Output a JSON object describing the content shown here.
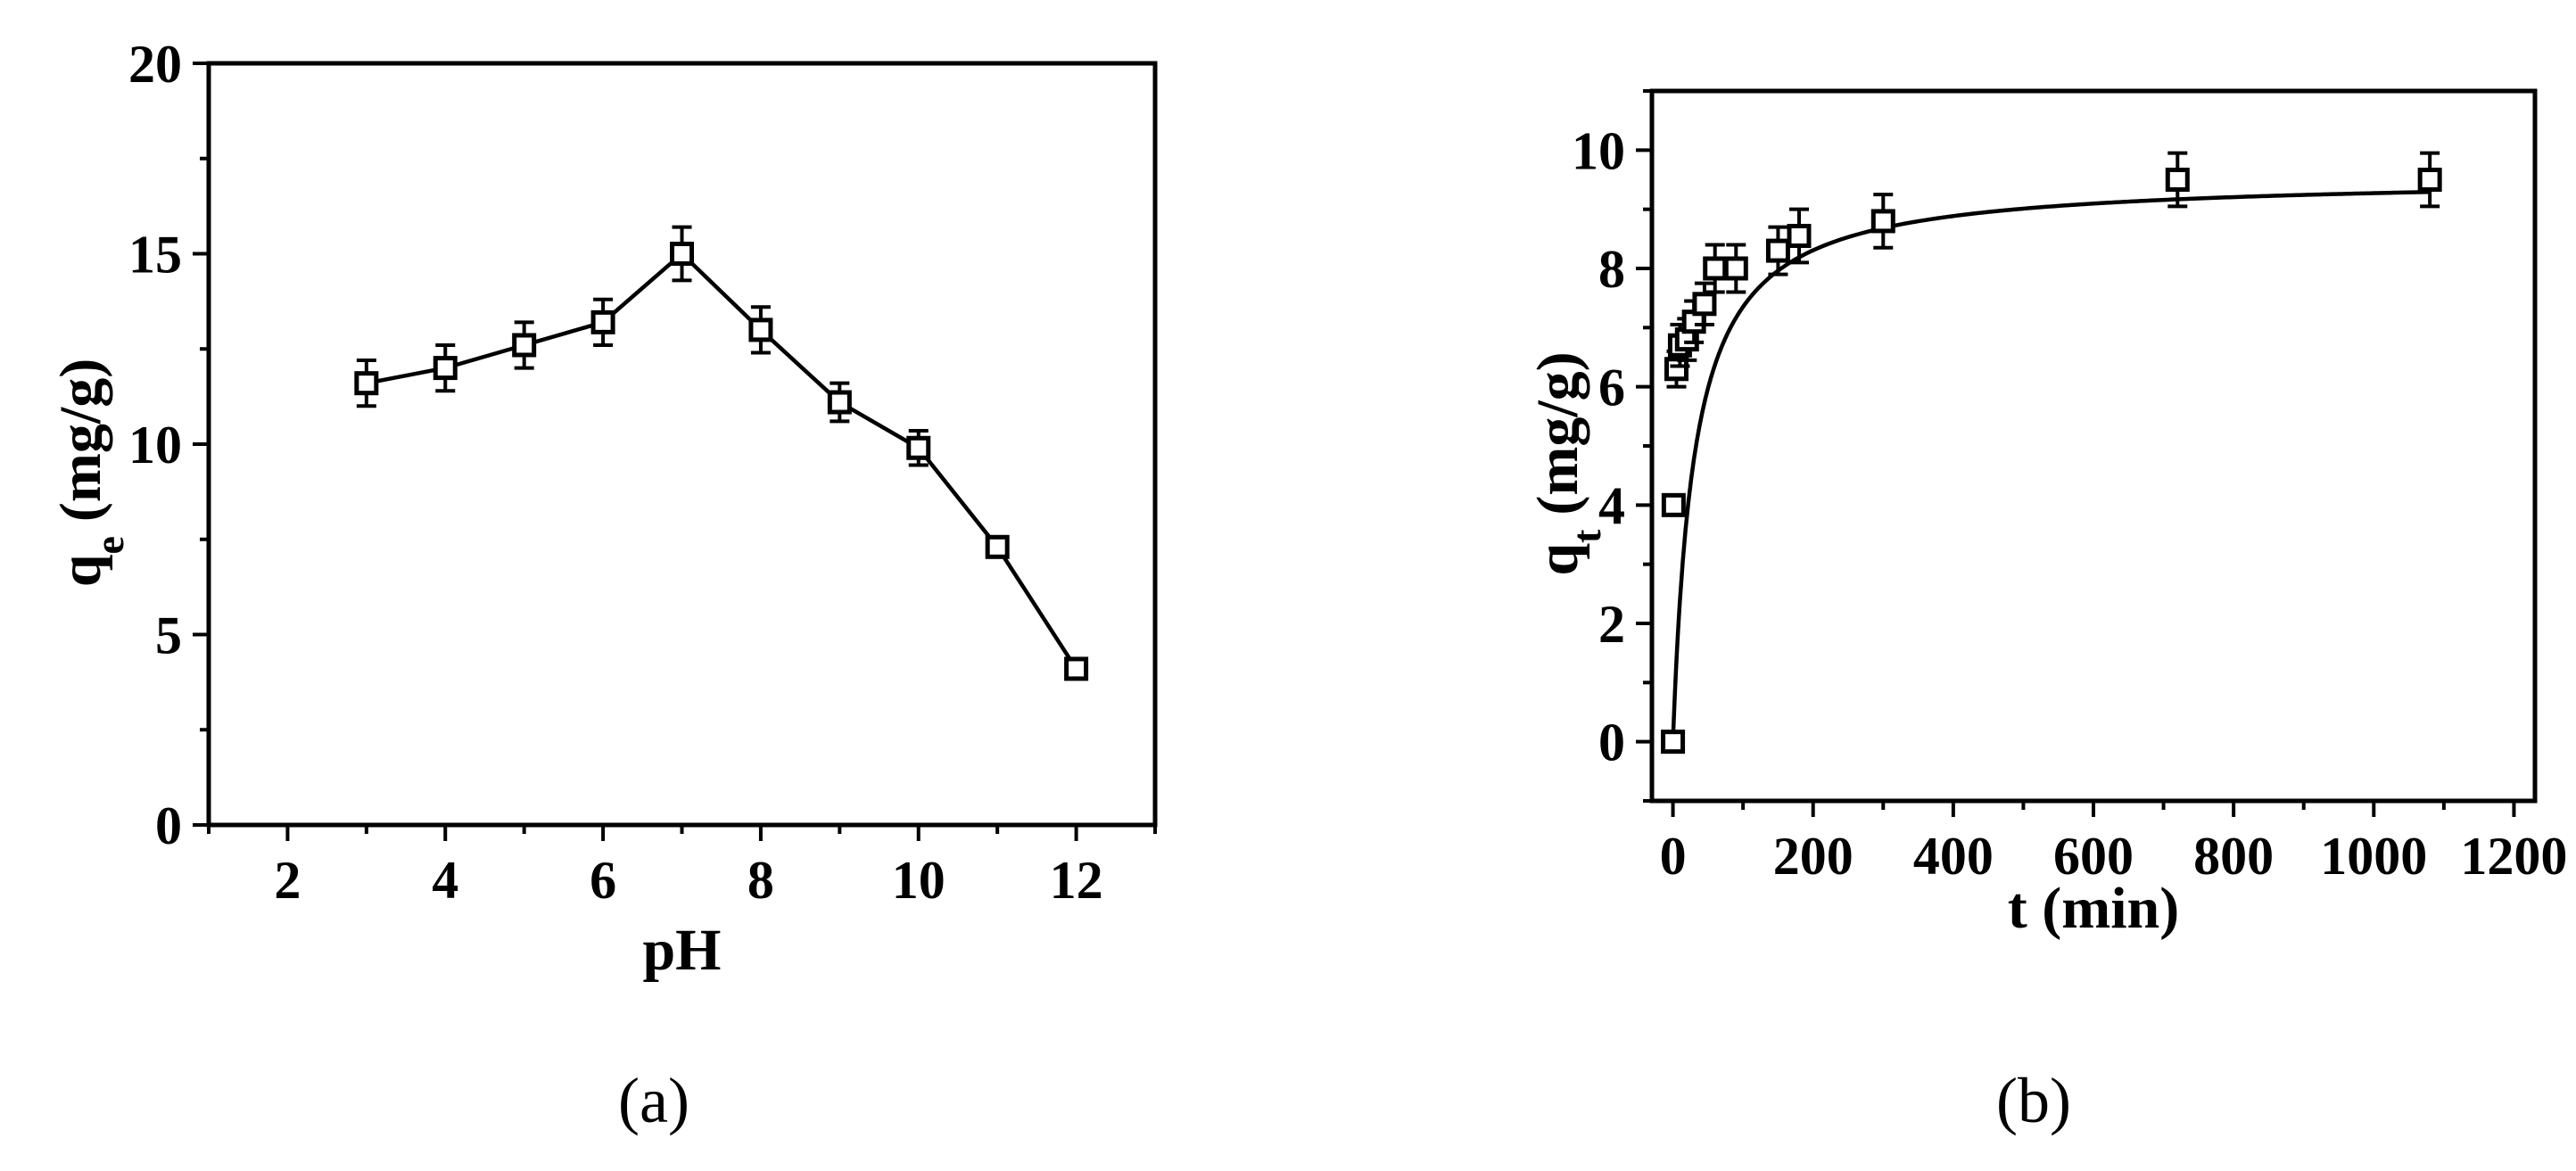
{
  "chart_data": [
    {
      "id": "a",
      "type": "line",
      "panel_label": "(a)",
      "xlabel": "pH",
      "ylabel": {
        "main": "q",
        "subscript": "e",
        "unit": "(mg/g)"
      },
      "xlim": [
        1,
        13
      ],
      "ylim": [
        0,
        20
      ],
      "xticks": [
        2,
        4,
        6,
        8,
        10,
        12
      ],
      "yticks": [
        0,
        5,
        10,
        15,
        20
      ],
      "grid": false,
      "marker": "open-square",
      "series": [
        {
          "x": [
            3,
            4,
            5,
            6,
            7,
            8,
            9,
            10,
            11,
            12
          ],
          "y": [
            11.6,
            12.0,
            12.6,
            13.2,
            15.0,
            13.0,
            11.1,
            9.9,
            7.3,
            4.1
          ],
          "error": [
            0.6,
            0.6,
            0.6,
            0.6,
            0.7,
            0.6,
            0.5,
            0.45,
            0.25,
            0.15
          ]
        }
      ]
    },
    {
      "id": "b",
      "type": "scatter",
      "panel_label": "(b)",
      "xlabel": "t (min)",
      "ylabel": {
        "main": "q",
        "subscript": "t",
        "unit": "(mg/g)"
      },
      "xlim": [
        -30,
        1230
      ],
      "ylim": [
        -1,
        11
      ],
      "xticks": [
        0,
        200,
        400,
        600,
        800,
        1000,
        1200
      ],
      "yticks": [
        0,
        2,
        4,
        6,
        8,
        10
      ],
      "grid": false,
      "marker": "open-square",
      "series": [
        {
          "x": [
            0,
            1,
            5,
            10,
            20,
            30,
            45,
            60,
            90,
            150,
            180,
            300,
            720,
            1080
          ],
          "y": [
            0,
            4.0,
            6.3,
            6.7,
            6.8,
            7.1,
            7.4,
            8.0,
            8.0,
            8.3,
            8.55,
            8.8,
            9.5,
            9.5
          ],
          "error": [
            0,
            0.15,
            0.3,
            0.35,
            0.35,
            0.35,
            0.35,
            0.4,
            0.4,
            0.4,
            0.45,
            0.45,
            0.45,
            0.45
          ]
        }
      ],
      "fit": {
        "qe": 9.55,
        "k": 0.0035,
        "x_start": 0.5,
        "x_end": 1080
      }
    }
  ]
}
